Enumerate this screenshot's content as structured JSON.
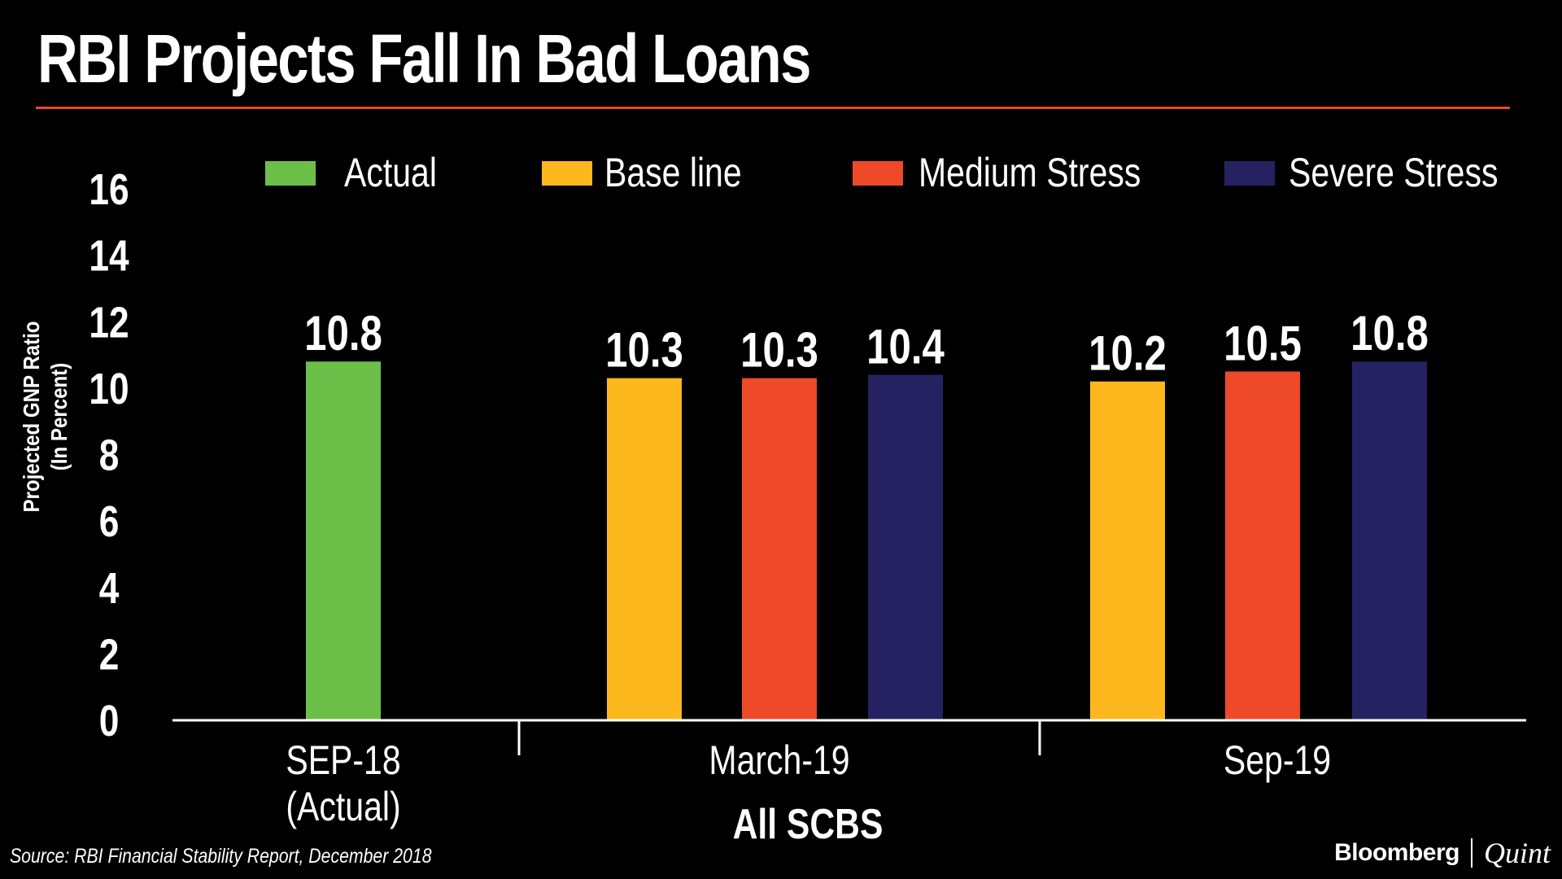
{
  "chart_data": {
    "type": "bar",
    "title": "RBI Projects Fall In Bad Loans",
    "ylabel": [
      "Projected GNP Ratio",
      "(In Percent)"
    ],
    "xlabel": "All SCBS",
    "ylim": [
      0,
      16
    ],
    "yticks": [
      0,
      2,
      4,
      6,
      8,
      10,
      12,
      14,
      16
    ],
    "grid": false,
    "legend_position": "top",
    "series": [
      {
        "name": "Actual",
        "color": "#6cc04a"
      },
      {
        "name": "Base line",
        "color": "#fdb81d"
      },
      {
        "name": "Medium Stress",
        "color": "#ee4a2a"
      },
      {
        "name": "Severe Stress",
        "color": "#262262"
      }
    ],
    "groups": [
      {
        "label": [
          "SEP-18",
          "(Actual)"
        ],
        "bars": [
          {
            "series": "Actual",
            "value": 10.8
          }
        ]
      },
      {
        "label": [
          "March-19"
        ],
        "bars": [
          {
            "series": "Base line",
            "value": 10.3
          },
          {
            "series": "Medium Stress",
            "value": 10.3
          },
          {
            "series": "Severe Stress",
            "value": 10.4
          }
        ]
      },
      {
        "label": [
          "Sep-19"
        ],
        "bars": [
          {
            "series": "Base line",
            "value": 10.2
          },
          {
            "series": "Medium Stress",
            "value": 10.5
          },
          {
            "series": "Severe Stress",
            "value": 10.8
          }
        ]
      }
    ]
  },
  "footer": {
    "source": "Source: RBI Financial Stability Report, December 2018",
    "brand_left": "Bloomberg",
    "brand_right": "Quint"
  },
  "colors": {
    "background": "#000000",
    "title_rule": "#e8482b",
    "text": "#ffffff"
  }
}
